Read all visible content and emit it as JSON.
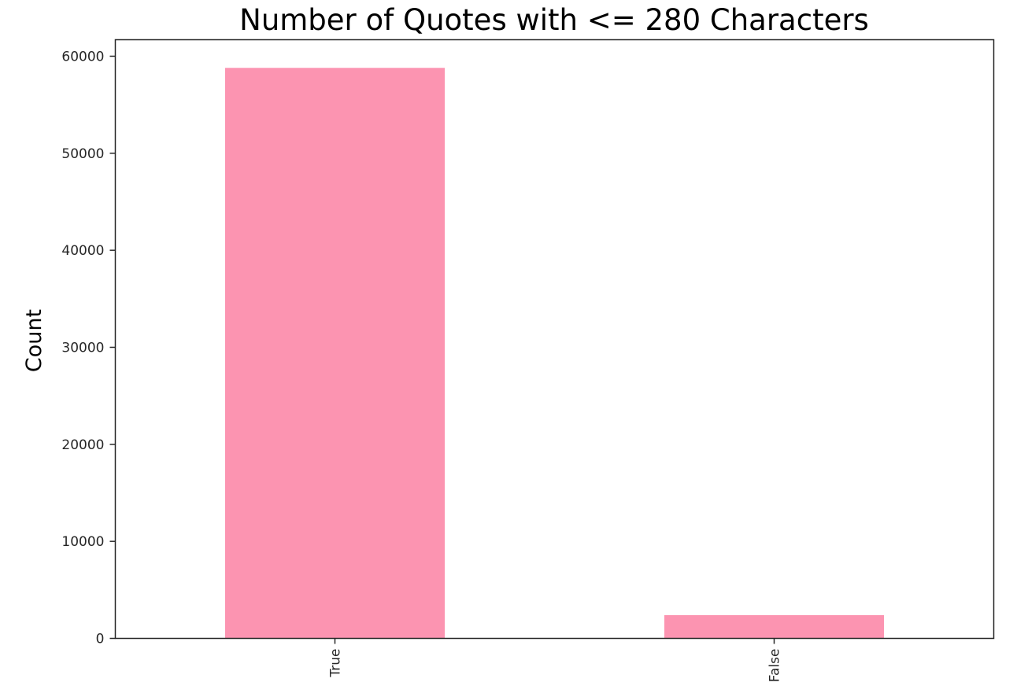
{
  "chart_data": {
    "type": "bar",
    "title": "Number of Quotes with <= 280 Characters",
    "xlabel": "",
    "ylabel": "Count",
    "categories": [
      "True",
      "False"
    ],
    "values": [
      58800,
      2400
    ],
    "ylim": [
      0,
      61700
    ],
    "yticks": [
      0,
      10000,
      20000,
      30000,
      40000,
      50000,
      60000
    ],
    "ytick_labels": [
      "0",
      "10000",
      "20000",
      "30000",
      "40000",
      "50000",
      "60000"
    ],
    "bar_color": "#fc94b1",
    "grid": false,
    "legend": "none"
  }
}
